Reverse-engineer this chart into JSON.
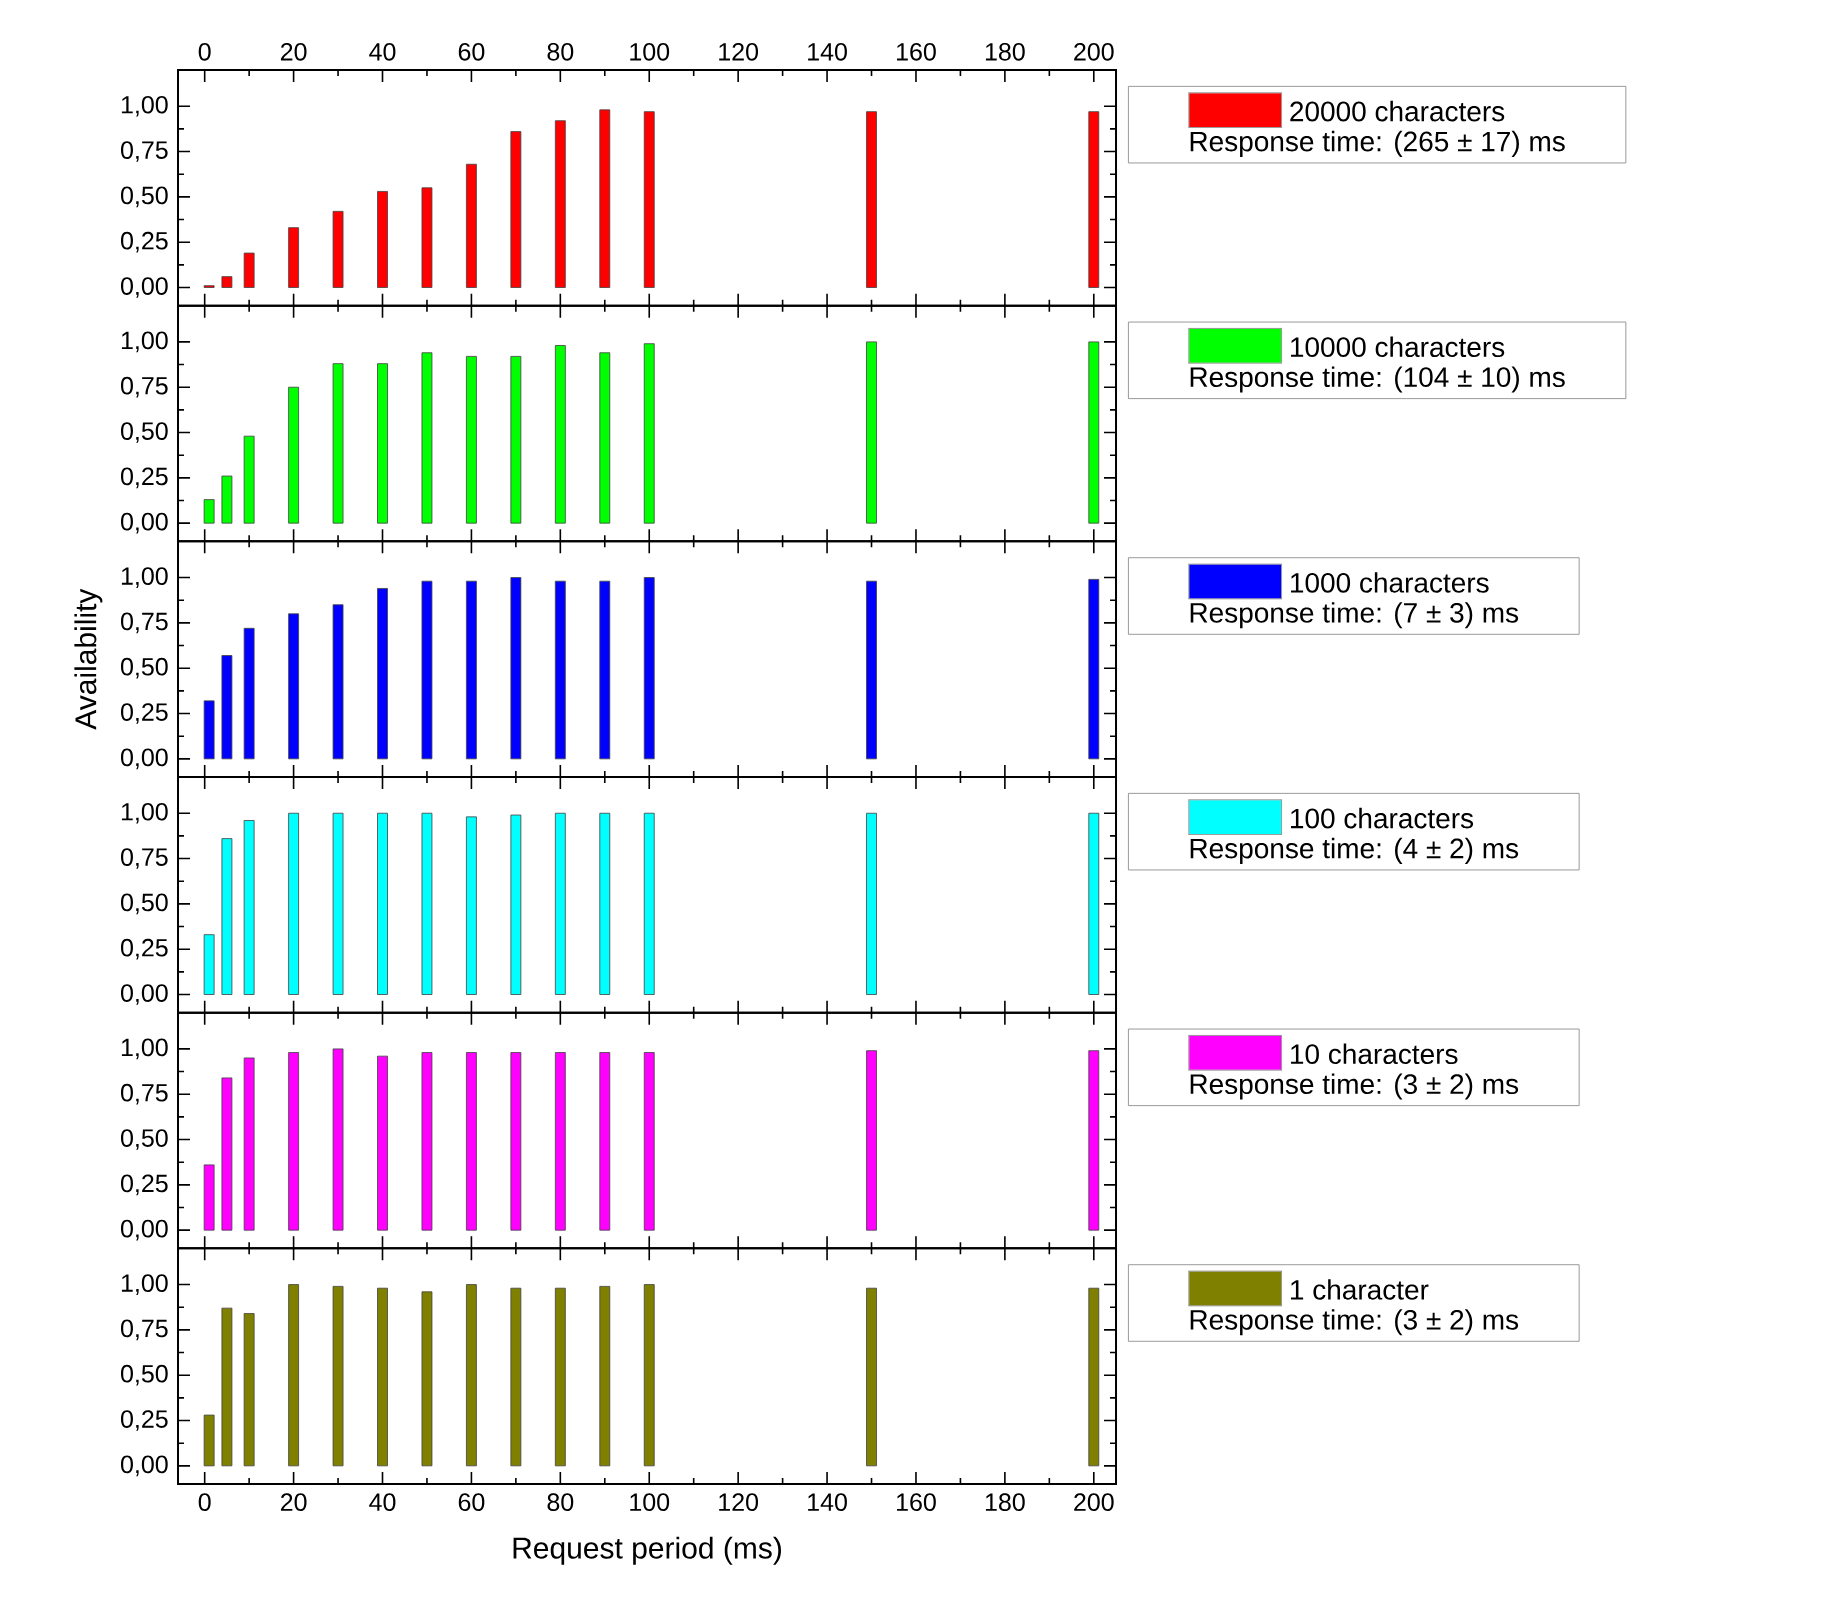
{
  "chart_data": [
    {
      "type": "bar",
      "x": [
        1,
        5,
        10,
        20,
        30,
        40,
        50,
        60,
        70,
        80,
        90,
        100,
        150,
        200
      ],
      "xlim": [
        -6,
        205
      ],
      "xticks": [
        0,
        20,
        40,
        60,
        80,
        100,
        120,
        140,
        160,
        180,
        200
      ],
      "x2lim": [
        -6,
        205
      ],
      "x2ticks": [
        0,
        20,
        40,
        60,
        80,
        100,
        120,
        140,
        160,
        180,
        200
      ],
      "ylim": [
        -0.1,
        1.2
      ],
      "yticks": [
        {
          "value": 0,
          "label": "0,00"
        },
        {
          "value": 0.25,
          "label": "0,25"
        },
        {
          "value": 0.5,
          "label": "0,50"
        },
        {
          "value": 0.75,
          "label": "0,75"
        },
        {
          "value": 1,
          "label": "1,00"
        }
      ],
      "tick_labels": "y",
      "legend": "right",
      "annotations": [
        "Response time: (265 ± 17) ms"
      ],
      "series": [
        {
          "name": "20000 characters",
          "color": "#ff0000",
          "values": [
            0.01,
            0.06,
            0.19,
            0.33,
            0.42,
            0.53,
            0.55,
            0.68,
            0.86,
            0.92,
            0.98,
            0.97,
            0.97,
            0.97
          ]
        }
      ]
    },
    {
      "type": "bar",
      "x": [
        1,
        5,
        10,
        20,
        30,
        40,
        50,
        60,
        70,
        80,
        90,
        100,
        150,
        200
      ],
      "xlim": [
        -6,
        205
      ],
      "xticks": [
        0,
        20,
        40,
        60,
        80,
        100,
        120,
        140,
        160,
        180,
        200
      ],
      "ylim": [
        -0.1,
        1.2
      ],
      "yticks": [
        {
          "value": 0,
          "label": "0,00"
        },
        {
          "value": 0.25,
          "label": "0,25"
        },
        {
          "value": 0.5,
          "label": "0,50"
        },
        {
          "value": 0.75,
          "label": "0,75"
        },
        {
          "value": 1,
          "label": "1,00"
        }
      ],
      "tick_labels": "y",
      "legend": "right",
      "annotations": [
        "Response time: (104 ± 10) ms"
      ],
      "series": [
        {
          "name": "10000 characters",
          "color": "#00ff00",
          "values": [
            0.13,
            0.26,
            0.48,
            0.75,
            0.88,
            0.88,
            0.94,
            0.92,
            0.92,
            0.98,
            0.94,
            0.99,
            1.0,
            1.0
          ]
        }
      ]
    },
    {
      "type": "bar",
      "x": [
        1,
        5,
        10,
        20,
        30,
        40,
        50,
        60,
        70,
        80,
        90,
        100,
        150,
        200
      ],
      "xlim": [
        -6,
        205
      ],
      "xticks": [
        0,
        20,
        40,
        60,
        80,
        100,
        120,
        140,
        160,
        180,
        200
      ],
      "ylim": [
        -0.1,
        1.2
      ],
      "yticks": [
        {
          "value": 0,
          "label": "0,00"
        },
        {
          "value": 0.25,
          "label": "0,25"
        },
        {
          "value": 0.5,
          "label": "0,50"
        },
        {
          "value": 0.75,
          "label": "0,75"
        },
        {
          "value": 1,
          "label": "1,00"
        }
      ],
      "tick_labels": "y",
      "legend": "right",
      "ylabel": "Availability",
      "annotations": [
        "Response time: (7 ± 3) ms"
      ],
      "series": [
        {
          "name": "1000 characters",
          "color": "#0000ff",
          "values": [
            0.32,
            0.57,
            0.72,
            0.8,
            0.85,
            0.94,
            0.98,
            0.98,
            1.0,
            0.98,
            0.98,
            1.0,
            0.98,
            0.99
          ]
        }
      ]
    },
    {
      "type": "bar",
      "x": [
        1,
        5,
        10,
        20,
        30,
        40,
        50,
        60,
        70,
        80,
        90,
        100,
        150,
        200
      ],
      "xlim": [
        -6,
        205
      ],
      "xticks": [
        0,
        20,
        40,
        60,
        80,
        100,
        120,
        140,
        160,
        180,
        200
      ],
      "ylim": [
        -0.1,
        1.2
      ],
      "yticks": [
        {
          "value": 0,
          "label": "0,00"
        },
        {
          "value": 0.25,
          "label": "0,25"
        },
        {
          "value": 0.5,
          "label": "0,50"
        },
        {
          "value": 0.75,
          "label": "0,75"
        },
        {
          "value": 1,
          "label": "1,00"
        }
      ],
      "tick_labels": "y",
      "legend": "right",
      "annotations": [
        "Response time: (4 ± 2) ms"
      ],
      "series": [
        {
          "name": "100 characters",
          "color": "#00ffff",
          "values": [
            0.33,
            0.86,
            0.96,
            1.0,
            1.0,
            1.0,
            1.0,
            0.98,
            0.99,
            1.0,
            1.0,
            1.0,
            1.0,
            1.0
          ]
        }
      ]
    },
    {
      "type": "bar",
      "x": [
        1,
        5,
        10,
        20,
        30,
        40,
        50,
        60,
        70,
        80,
        90,
        100,
        150,
        200
      ],
      "xlim": [
        -6,
        205
      ],
      "xticks": [
        0,
        20,
        40,
        60,
        80,
        100,
        120,
        140,
        160,
        180,
        200
      ],
      "ylim": [
        -0.1,
        1.2
      ],
      "yticks": [
        {
          "value": 0,
          "label": "0,00"
        },
        {
          "value": 0.25,
          "label": "0,25"
        },
        {
          "value": 0.5,
          "label": "0,50"
        },
        {
          "value": 0.75,
          "label": "0,75"
        },
        {
          "value": 1,
          "label": "1,00"
        }
      ],
      "tick_labels": "y",
      "legend": "right",
      "annotations": [
        "Response time: (3 ± 2) ms"
      ],
      "series": [
        {
          "name": "10 characters",
          "color": "#ff00ff",
          "values": [
            0.36,
            0.84,
            0.95,
            0.98,
            1.0,
            0.96,
            0.98,
            0.98,
            0.98,
            0.98,
            0.98,
            0.98,
            0.99,
            0.99
          ]
        }
      ]
    },
    {
      "type": "bar",
      "x": [
        1,
        5,
        10,
        20,
        30,
        40,
        50,
        60,
        70,
        80,
        90,
        100,
        150,
        200
      ],
      "xlim": [
        -6,
        205
      ],
      "xticks": [
        0,
        20,
        40,
        60,
        80,
        100,
        120,
        140,
        160,
        180,
        200
      ],
      "ylim": [
        -0.1,
        1.2
      ],
      "yticks": [
        {
          "value": 0,
          "label": "0,00"
        },
        {
          "value": 0.25,
          "label": "0,25"
        },
        {
          "value": 0.5,
          "label": "0,50"
        },
        {
          "value": 0.75,
          "label": "0,75"
        },
        {
          "value": 1,
          "label": "1,00"
        }
      ],
      "xlabel": "Request period (ms)",
      "legend": "right",
      "annotations": [
        "Response time: (3 ± 2) ms"
      ],
      "series": [
        {
          "name": "1 character",
          "color": "#808000",
          "values": [
            0.28,
            0.87,
            0.84,
            1.0,
            0.99,
            0.98,
            0.96,
            1.0,
            0.98,
            0.98,
            0.99,
            1.0,
            0.98,
            0.98
          ]
        }
      ]
    }
  ]
}
